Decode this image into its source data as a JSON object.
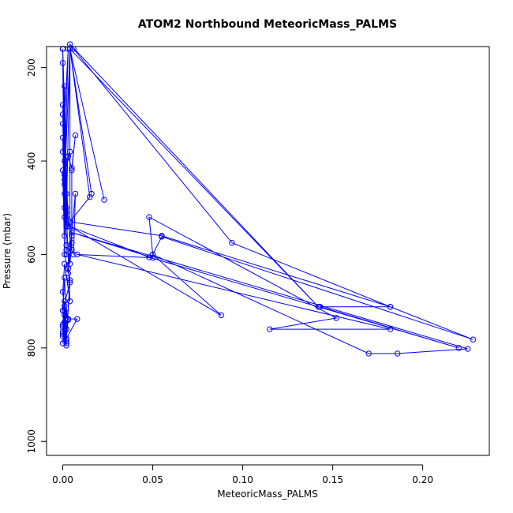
{
  "chart_data": {
    "type": "scatter",
    "title": "ATOM2 Northbound MeteoricMass_PALMS",
    "xlabel": "MeteoricMass_PALMS",
    "ylabel": "Pressure (mbar)",
    "x_ticks": [
      "0.00",
      "0.05",
      "0.10",
      "0.15",
      "0.20"
    ],
    "y_ticks": [
      "200",
      "400",
      "600",
      "800",
      "1000"
    ],
    "xlim": [
      -0.009,
      0.237
    ],
    "ylim": [
      1030,
      155
    ],
    "y_reversed": true,
    "grid": false,
    "legend": "none",
    "series_color": "#0000FF",
    "point_style": "open-circle-connected",
    "series": [
      {
        "x": [
          0.0,
          0.001,
          0.0,
          0.002,
          0.001,
          0.0,
          0.003,
          0.001,
          0.0,
          0.002,
          0.0,
          0.001,
          0.0,
          0.002,
          0.004,
          0.001,
          0.0,
          0.002,
          0.001,
          0.0,
          0.003,
          0.001,
          0.0,
          0.002,
          0.001,
          0.0,
          0.001,
          0.002,
          0.0,
          0.001,
          0.003,
          0.005,
          0.002,
          0.004,
          0.001,
          0.0,
          0.002,
          0.001,
          0.0,
          0.004,
          0.002,
          0.003,
          0.001,
          0.0,
          0.002,
          0.001,
          0.0,
          0.002,
          0.001,
          0.0,
          0.003,
          0.001,
          0.0,
          0.002,
          0.002,
          0.001,
          0.0,
          0.001,
          0.0
        ],
        "y": [
          160,
          520,
          190,
          470,
          240,
          380,
          160,
          440,
          300,
          500,
          160,
          560,
          350,
          520,
          160,
          450,
          280,
          600,
          400,
          160,
          540,
          430,
          320,
          580,
          500,
          160,
          470,
          540,
          420,
          600,
          640,
          560,
          510,
          700,
          620,
          680,
          760,
          650,
          720,
          660,
          780,
          740,
          700,
          750,
          790,
          730,
          770,
          785,
          710,
          765,
          740,
          720,
          755,
          795,
          760,
          730,
          790,
          745,
          775
        ]
      },
      {
        "x": [
          0.001,
          0.004,
          0.003,
          0.005,
          0.007,
          0.005,
          0.005,
          0.006,
          0.007,
          0.003,
          0.004,
          0.002,
          0.008,
          0.003
        ],
        "y": [
          430,
          380,
          390,
          415,
          345,
          420,
          590,
          600,
          470,
          630,
          655,
          780,
          738,
          738
        ]
      },
      {
        "x": [
          0.006,
          0.094,
          0.182,
          0.228,
          0.055,
          0.05,
          0.048,
          0.152,
          0.115,
          0.182,
          0.008,
          0.05,
          0.005,
          0.225,
          0.186,
          0.17,
          0.05,
          0.088,
          0.004,
          0.048,
          0.22,
          0.143,
          0.182,
          0.055,
          0.004,
          0.015,
          0.004,
          0.016,
          0.004,
          0.023,
          0.004,
          0.142,
          0.004,
          0.004,
          0.005,
          0.002
        ],
        "y": [
          160,
          575,
          712,
          782,
          562,
          600,
          520,
          736,
          760,
          760,
          600,
          607,
          553,
          802,
          812,
          812,
          600,
          730,
          540,
          606,
          800,
          712,
          712,
          560,
          530,
          477,
          160,
          470,
          160,
          483,
          160,
          712,
          150,
          620,
          575,
          590
        ]
      }
    ]
  }
}
